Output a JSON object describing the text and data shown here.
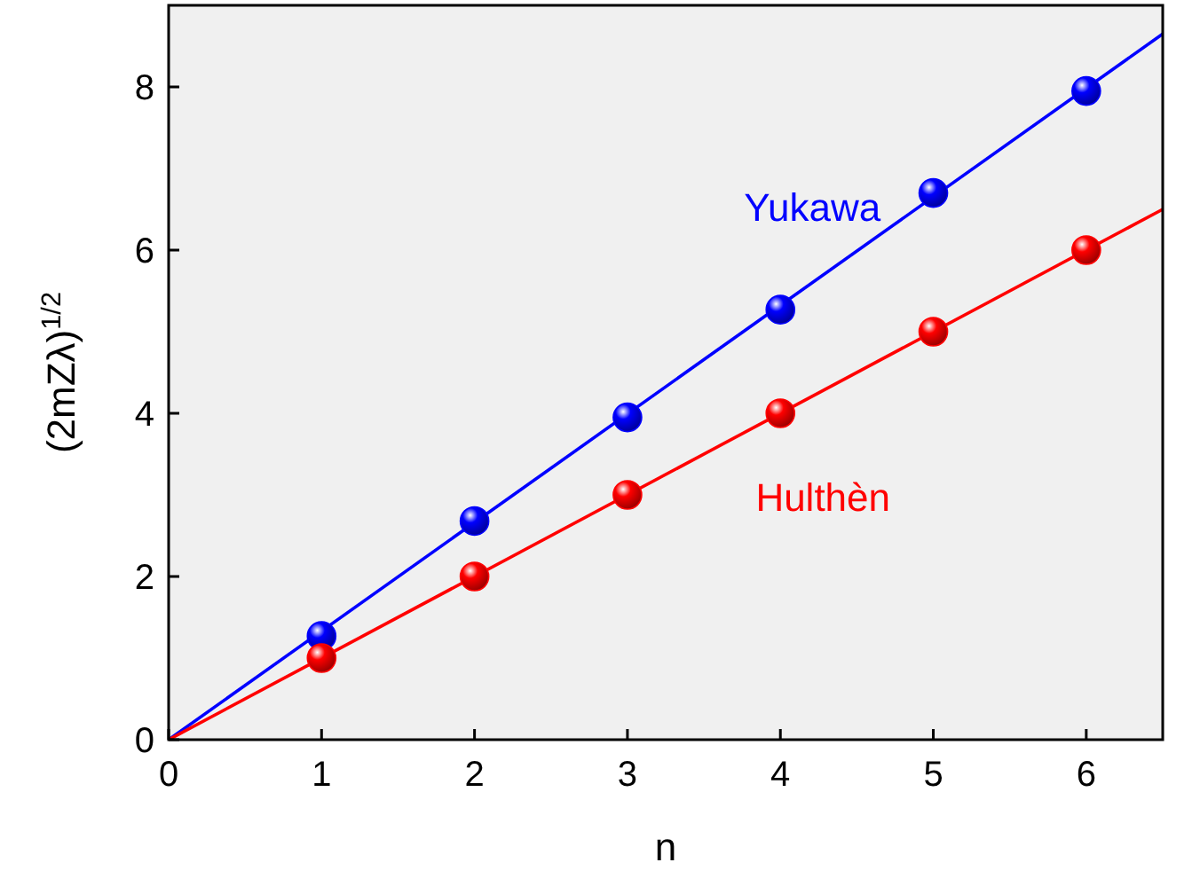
{
  "chart_data": {
    "type": "scatter",
    "xlabel": "n",
    "ylabel": "(2mZλ)$^{1/2}$",
    "xlim": [
      0,
      6.5
    ],
    "ylim": [
      0,
      9
    ],
    "xticks": [
      0,
      1,
      2,
      3,
      4,
      5,
      6
    ],
    "yticks": [
      0,
      2,
      4,
      6,
      8
    ],
    "grid": false,
    "marker": "circle",
    "series": [
      {
        "name": "Yukawa",
        "color": "#0000ff",
        "x": [
          1,
          2,
          3,
          4,
          5,
          6
        ],
        "values": [
          1.27,
          2.68,
          3.95,
          5.27,
          6.7,
          7.95
        ]
      },
      {
        "name": "Hulthèn",
        "color": "#ff0000",
        "x": [
          1,
          2,
          3,
          4,
          5,
          6
        ],
        "values": [
          1,
          2,
          3,
          4,
          5,
          6
        ]
      },
      {
        "type": "line",
        "color": "#0000ff",
        "x": [
          0,
          6.5
        ],
        "values": [
          0,
          8.65
        ],
        "marker": "none"
      },
      {
        "type": "line",
        "color": "#ff0000",
        "x": [
          0,
          6.5
        ],
        "values": [
          0,
          6.5
        ],
        "marker": "none"
      }
    ]
  }
}
